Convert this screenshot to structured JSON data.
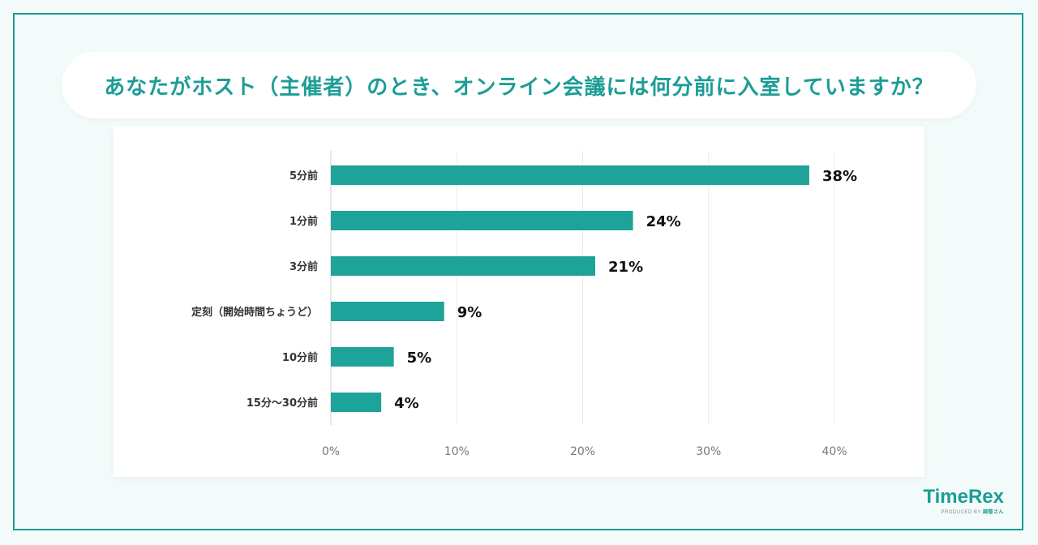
{
  "chart_data": {
    "type": "bar",
    "orientation": "horizontal",
    "title": "あなたがホスト（主催者）のとき、オンライン会議には何分前に入室していますか？",
    "categories": [
      "5分前",
      "1分前",
      "3分前",
      "定刻（開始時間ちょうど）",
      "10分前",
      "15分〜30分前"
    ],
    "values": [
      38,
      24,
      21,
      9,
      5,
      4
    ],
    "value_labels": [
      "38%",
      "24%",
      "21%",
      "9%",
      "5%",
      "4%"
    ],
    "x_ticks": [
      "0%",
      "10%",
      "20%",
      "30%",
      "40%"
    ],
    "xlim": [
      0,
      40
    ],
    "grid": true,
    "bar_color": "#1ea39a"
  },
  "logo": {
    "name": "TimeRex",
    "produced_by": "PRODUCED BY",
    "producer": "調整さん"
  },
  "colors": {
    "accent": "#1c9d96"
  }
}
